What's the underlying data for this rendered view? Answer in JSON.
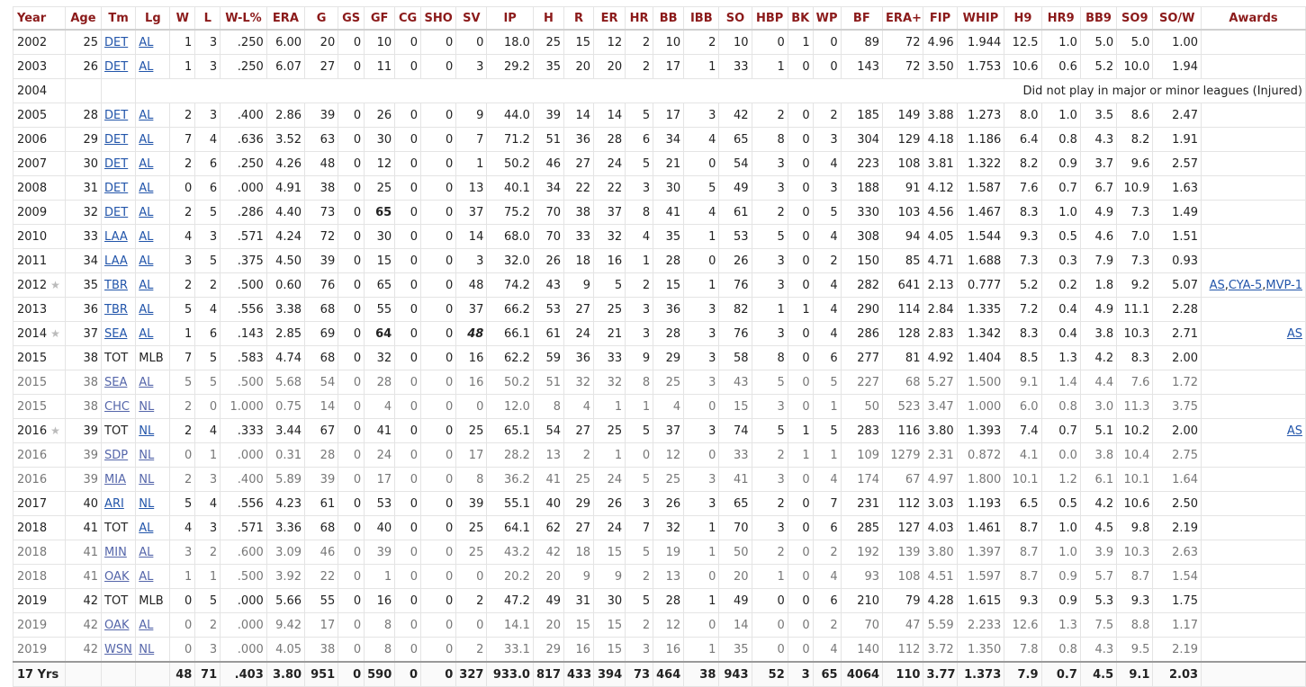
{
  "columns": [
    "Year",
    "Age",
    "Tm",
    "Lg",
    "W",
    "L",
    "W-L%",
    "ERA",
    "G",
    "GS",
    "GF",
    "CG",
    "SHO",
    "SV",
    "IP",
    "H",
    "R",
    "ER",
    "HR",
    "BB",
    "IBB",
    "SO",
    "HBP",
    "BK",
    "WP",
    "BF",
    "ERA+",
    "FIP",
    "WHIP",
    "H9",
    "HR9",
    "BB9",
    "SO9",
    "SO/W",
    "Awards"
  ],
  "rows": [
    {
      "year": "2002",
      "age": "25",
      "tm": "DET",
      "lg": "AL",
      "w": "1",
      "l": "3",
      "wlp": ".250",
      "era": "6.00",
      "g": "20",
      "gs": "0",
      "gf": "10",
      "cg": "0",
      "sho": "0",
      "sv": "0",
      "ip": "18.0",
      "h": "25",
      "r": "15",
      "er": "12",
      "hr": "2",
      "bb": "10",
      "ibb": "2",
      "so": "10",
      "hbp": "0",
      "bk": "1",
      "wp": "0",
      "bf": "89",
      "eraplus": "72",
      "fip": "4.96",
      "whip": "1.944",
      "h9": "12.5",
      "hr9": "1.0",
      "bb9": "5.0",
      "so9": "5.0",
      "sow": "1.00",
      "awards": []
    },
    {
      "year": "2003",
      "age": "26",
      "tm": "DET",
      "lg": "AL",
      "w": "1",
      "l": "3",
      "wlp": ".250",
      "era": "6.07",
      "g": "27",
      "gs": "0",
      "gf": "11",
      "cg": "0",
      "sho": "0",
      "sv": "3",
      "ip": "29.2",
      "h": "35",
      "r": "20",
      "er": "20",
      "hr": "2",
      "bb": "17",
      "ibb": "1",
      "so": "33",
      "hbp": "1",
      "bk": "0",
      "wp": "0",
      "bf": "143",
      "eraplus": "72",
      "fip": "3.50",
      "whip": "1.753",
      "h9": "10.6",
      "hr9": "0.6",
      "bb9": "5.2",
      "so9": "10.0",
      "sow": "1.94",
      "awards": []
    },
    {
      "year": "2004",
      "note": "Did not play in major or minor leagues (Injured)"
    },
    {
      "year": "2005",
      "age": "28",
      "tm": "DET",
      "lg": "AL",
      "w": "2",
      "l": "3",
      "wlp": ".400",
      "era": "2.86",
      "g": "39",
      "gs": "0",
      "gf": "26",
      "cg": "0",
      "sho": "0",
      "sv": "9",
      "ip": "44.0",
      "h": "39",
      "r": "14",
      "er": "14",
      "hr": "5",
      "bb": "17",
      "ibb": "3",
      "so": "42",
      "hbp": "2",
      "bk": "0",
      "wp": "2",
      "bf": "185",
      "eraplus": "149",
      "fip": "3.88",
      "whip": "1.273",
      "h9": "8.0",
      "hr9": "1.0",
      "bb9": "3.5",
      "so9": "8.6",
      "sow": "2.47",
      "awards": []
    },
    {
      "year": "2006",
      "age": "29",
      "tm": "DET",
      "lg": "AL",
      "w": "7",
      "l": "4",
      "wlp": ".636",
      "era": "3.52",
      "g": "63",
      "gs": "0",
      "gf": "30",
      "cg": "0",
      "sho": "0",
      "sv": "7",
      "ip": "71.2",
      "h": "51",
      "r": "36",
      "er": "28",
      "hr": "6",
      "bb": "34",
      "ibb": "4",
      "so": "65",
      "hbp": "8",
      "bk": "0",
      "wp": "3",
      "bf": "304",
      "eraplus": "129",
      "fip": "4.18",
      "whip": "1.186",
      "h9": "6.4",
      "hr9": "0.8",
      "bb9": "4.3",
      "so9": "8.2",
      "sow": "1.91",
      "awards": []
    },
    {
      "year": "2007",
      "age": "30",
      "tm": "DET",
      "lg": "AL",
      "w": "2",
      "l": "6",
      "wlp": ".250",
      "era": "4.26",
      "g": "48",
      "gs": "0",
      "gf": "12",
      "cg": "0",
      "sho": "0",
      "sv": "1",
      "ip": "50.2",
      "h": "46",
      "r": "27",
      "er": "24",
      "hr": "5",
      "bb": "21",
      "ibb": "0",
      "so": "54",
      "hbp": "3",
      "bk": "0",
      "wp": "4",
      "bf": "223",
      "eraplus": "108",
      "fip": "3.81",
      "whip": "1.322",
      "h9": "8.2",
      "hr9": "0.9",
      "bb9": "3.7",
      "so9": "9.6",
      "sow": "2.57",
      "awards": []
    },
    {
      "year": "2008",
      "age": "31",
      "tm": "DET",
      "lg": "AL",
      "w": "0",
      "l": "6",
      "wlp": ".000",
      "era": "4.91",
      "g": "38",
      "gs": "0",
      "gf": "25",
      "cg": "0",
      "sho": "0",
      "sv": "13",
      "ip": "40.1",
      "h": "34",
      "r": "22",
      "er": "22",
      "hr": "3",
      "bb": "30",
      "ibb": "5",
      "so": "49",
      "hbp": "3",
      "bk": "0",
      "wp": "3",
      "bf": "188",
      "eraplus": "91",
      "fip": "4.12",
      "whip": "1.587",
      "h9": "7.6",
      "hr9": "0.7",
      "bb9": "6.7",
      "so9": "10.9",
      "sow": "1.63",
      "awards": []
    },
    {
      "year": "2009",
      "age": "32",
      "tm": "DET",
      "lg": "AL",
      "w": "2",
      "l": "5",
      "wlp": ".286",
      "era": "4.40",
      "g": "73",
      "gs": "0",
      "gf": "65",
      "gfStyle": "bold",
      "cg": "0",
      "sho": "0",
      "sv": "37",
      "ip": "75.2",
      "h": "70",
      "r": "38",
      "er": "37",
      "hr": "8",
      "bb": "41",
      "ibb": "4",
      "so": "61",
      "hbp": "2",
      "bk": "0",
      "wp": "5",
      "bf": "330",
      "eraplus": "103",
      "fip": "4.56",
      "whip": "1.467",
      "h9": "8.3",
      "hr9": "1.0",
      "bb9": "4.9",
      "so9": "7.3",
      "sow": "1.49",
      "awards": []
    },
    {
      "year": "2010",
      "age": "33",
      "tm": "LAA",
      "lg": "AL",
      "w": "4",
      "l": "3",
      "wlp": ".571",
      "era": "4.24",
      "g": "72",
      "gs": "0",
      "gf": "30",
      "cg": "0",
      "sho": "0",
      "sv": "14",
      "ip": "68.0",
      "h": "70",
      "r": "33",
      "er": "32",
      "hr": "4",
      "bb": "35",
      "ibb": "1",
      "so": "53",
      "hbp": "5",
      "bk": "0",
      "wp": "4",
      "bf": "308",
      "eraplus": "94",
      "fip": "4.05",
      "whip": "1.544",
      "h9": "9.3",
      "hr9": "0.5",
      "bb9": "4.6",
      "so9": "7.0",
      "sow": "1.51",
      "awards": []
    },
    {
      "year": "2011",
      "age": "34",
      "tm": "LAA",
      "lg": "AL",
      "w": "3",
      "l": "5",
      "wlp": ".375",
      "era": "4.50",
      "g": "39",
      "gs": "0",
      "gf": "15",
      "cg": "0",
      "sho": "0",
      "sv": "3",
      "ip": "32.0",
      "h": "26",
      "r": "18",
      "er": "16",
      "hr": "1",
      "bb": "28",
      "ibb": "0",
      "so": "26",
      "hbp": "3",
      "bk": "0",
      "wp": "2",
      "bf": "150",
      "eraplus": "85",
      "fip": "4.71",
      "whip": "1.688",
      "h9": "7.3",
      "hr9": "0.3",
      "bb9": "7.9",
      "so9": "7.3",
      "sow": "0.93",
      "awards": []
    },
    {
      "year": "2012",
      "star": "★",
      "age": "35",
      "tm": "TBR",
      "lg": "AL",
      "w": "2",
      "l": "2",
      "wlp": ".500",
      "era": "0.60",
      "g": "76",
      "gs": "0",
      "gf": "65",
      "cg": "0",
      "sho": "0",
      "sv": "48",
      "ip": "74.2",
      "h": "43",
      "r": "9",
      "er": "5",
      "hr": "2",
      "bb": "15",
      "ibb": "1",
      "so": "76",
      "hbp": "3",
      "bk": "0",
      "wp": "4",
      "bf": "282",
      "eraplus": "641",
      "fip": "2.13",
      "whip": "0.777",
      "h9": "5.2",
      "hr9": "0.2",
      "bb9": "1.8",
      "so9": "9.2",
      "sow": "5.07",
      "awards": [
        "AS",
        "CYA-5",
        "MVP-1"
      ]
    },
    {
      "year": "2013",
      "age": "36",
      "tm": "TBR",
      "lg": "AL",
      "w": "5",
      "l": "4",
      "wlp": ".556",
      "era": "3.38",
      "g": "68",
      "gs": "0",
      "gf": "55",
      "cg": "0",
      "sho": "0",
      "sv": "37",
      "ip": "66.2",
      "h": "53",
      "r": "27",
      "er": "25",
      "hr": "3",
      "bb": "36",
      "ibb": "3",
      "so": "82",
      "hbp": "1",
      "bk": "1",
      "wp": "4",
      "bf": "290",
      "eraplus": "114",
      "fip": "2.84",
      "whip": "1.335",
      "h9": "7.2",
      "hr9": "0.4",
      "bb9": "4.9",
      "so9": "11.1",
      "sow": "2.28",
      "awards": []
    },
    {
      "year": "2014",
      "star": "★",
      "age": "37",
      "tm": "SEA",
      "lg": "AL",
      "w": "1",
      "l": "6",
      "wlp": ".143",
      "era": "2.85",
      "g": "69",
      "gs": "0",
      "gf": "64",
      "gfStyle": "bold",
      "cg": "0",
      "sho": "0",
      "sv": "48",
      "svStyle": "bi",
      "ip": "66.1",
      "h": "61",
      "r": "24",
      "er": "21",
      "hr": "3",
      "bb": "28",
      "ibb": "3",
      "so": "76",
      "hbp": "3",
      "bk": "0",
      "wp": "4",
      "bf": "286",
      "eraplus": "128",
      "fip": "2.83",
      "whip": "1.342",
      "h9": "8.3",
      "hr9": "0.4",
      "bb9": "3.8",
      "so9": "10.3",
      "sow": "2.71",
      "awards": [
        "AS"
      ]
    },
    {
      "year": "2015",
      "age": "38",
      "tm": "TOT",
      "lg": "MLB",
      "w": "7",
      "l": "5",
      "wlp": ".583",
      "era": "4.74",
      "g": "68",
      "gs": "0",
      "gf": "32",
      "cg": "0",
      "sho": "0",
      "sv": "16",
      "ip": "62.2",
      "h": "59",
      "r": "36",
      "er": "33",
      "hr": "9",
      "bb": "29",
      "ibb": "3",
      "so": "58",
      "hbp": "8",
      "bk": "0",
      "wp": "6",
      "bf": "277",
      "eraplus": "81",
      "fip": "4.92",
      "whip": "1.404",
      "h9": "8.5",
      "hr9": "1.3",
      "bb9": "4.2",
      "so9": "8.3",
      "sow": "2.00",
      "awards": [],
      "tmLink": false,
      "lgLink": false
    },
    {
      "year": "2015",
      "partial": true,
      "age": "38",
      "tm": "SEA",
      "lg": "AL",
      "w": "5",
      "l": "5",
      "wlp": ".500",
      "era": "5.68",
      "g": "54",
      "gs": "0",
      "gf": "28",
      "cg": "0",
      "sho": "0",
      "sv": "16",
      "ip": "50.2",
      "h": "51",
      "r": "32",
      "er": "32",
      "hr": "8",
      "bb": "25",
      "ibb": "3",
      "so": "43",
      "hbp": "5",
      "bk": "0",
      "wp": "5",
      "bf": "227",
      "eraplus": "68",
      "fip": "5.27",
      "whip": "1.500",
      "h9": "9.1",
      "hr9": "1.4",
      "bb9": "4.4",
      "so9": "7.6",
      "sow": "1.72",
      "awards": []
    },
    {
      "year": "2015",
      "partial": true,
      "age": "38",
      "tm": "CHC",
      "lg": "NL",
      "w": "2",
      "l": "0",
      "wlp": "1.000",
      "era": "0.75",
      "g": "14",
      "gs": "0",
      "gf": "4",
      "cg": "0",
      "sho": "0",
      "sv": "0",
      "ip": "12.0",
      "h": "8",
      "r": "4",
      "er": "1",
      "hr": "1",
      "bb": "4",
      "ibb": "0",
      "so": "15",
      "hbp": "3",
      "bk": "0",
      "wp": "1",
      "bf": "50",
      "eraplus": "523",
      "fip": "3.47",
      "whip": "1.000",
      "h9": "6.0",
      "hr9": "0.8",
      "bb9": "3.0",
      "so9": "11.3",
      "sow": "3.75",
      "awards": []
    },
    {
      "year": "2016",
      "star": "★",
      "age": "39",
      "tm": "TOT",
      "lg": "NL",
      "w": "2",
      "l": "4",
      "wlp": ".333",
      "era": "3.44",
      "g": "67",
      "gs": "0",
      "gf": "41",
      "cg": "0",
      "sho": "0",
      "sv": "25",
      "ip": "65.1",
      "h": "54",
      "r": "27",
      "er": "25",
      "hr": "5",
      "bb": "37",
      "ibb": "3",
      "so": "74",
      "hbp": "5",
      "bk": "1",
      "wp": "5",
      "bf": "283",
      "eraplus": "116",
      "fip": "3.80",
      "whip": "1.393",
      "h9": "7.4",
      "hr9": "0.7",
      "bb9": "5.1",
      "so9": "10.2",
      "sow": "2.00",
      "awards": [
        "AS"
      ],
      "tmLink": false
    },
    {
      "year": "2016",
      "partial": true,
      "age": "39",
      "tm": "SDP",
      "lg": "NL",
      "w": "0",
      "l": "1",
      "wlp": ".000",
      "era": "0.31",
      "g": "28",
      "gs": "0",
      "gf": "24",
      "cg": "0",
      "sho": "0",
      "sv": "17",
      "ip": "28.2",
      "h": "13",
      "r": "2",
      "er": "1",
      "hr": "0",
      "bb": "12",
      "ibb": "0",
      "so": "33",
      "hbp": "2",
      "bk": "1",
      "wp": "1",
      "bf": "109",
      "eraplus": "1279",
      "fip": "2.31",
      "whip": "0.872",
      "h9": "4.1",
      "hr9": "0.0",
      "bb9": "3.8",
      "so9": "10.4",
      "sow": "2.75",
      "awards": []
    },
    {
      "year": "2016",
      "partial": true,
      "age": "39",
      "tm": "MIA",
      "lg": "NL",
      "w": "2",
      "l": "3",
      "wlp": ".400",
      "era": "5.89",
      "g": "39",
      "gs": "0",
      "gf": "17",
      "cg": "0",
      "sho": "0",
      "sv": "8",
      "ip": "36.2",
      "h": "41",
      "r": "25",
      "er": "24",
      "hr": "5",
      "bb": "25",
      "ibb": "3",
      "so": "41",
      "hbp": "3",
      "bk": "0",
      "wp": "4",
      "bf": "174",
      "eraplus": "67",
      "fip": "4.97",
      "whip": "1.800",
      "h9": "10.1",
      "hr9": "1.2",
      "bb9": "6.1",
      "so9": "10.1",
      "sow": "1.64",
      "awards": []
    },
    {
      "year": "2017",
      "age": "40",
      "tm": "ARI",
      "lg": "NL",
      "w": "5",
      "l": "4",
      "wlp": ".556",
      "era": "4.23",
      "g": "61",
      "gs": "0",
      "gf": "53",
      "cg": "0",
      "sho": "0",
      "sv": "39",
      "ip": "55.1",
      "h": "40",
      "r": "29",
      "er": "26",
      "hr": "3",
      "bb": "26",
      "ibb": "3",
      "so": "65",
      "hbp": "2",
      "bk": "0",
      "wp": "7",
      "bf": "231",
      "eraplus": "112",
      "fip": "3.03",
      "whip": "1.193",
      "h9": "6.5",
      "hr9": "0.5",
      "bb9": "4.2",
      "so9": "10.6",
      "sow": "2.50",
      "awards": []
    },
    {
      "year": "2018",
      "age": "41",
      "tm": "TOT",
      "lg": "AL",
      "w": "4",
      "l": "3",
      "wlp": ".571",
      "era": "3.36",
      "g": "68",
      "gs": "0",
      "gf": "40",
      "cg": "0",
      "sho": "0",
      "sv": "25",
      "ip": "64.1",
      "h": "62",
      "r": "27",
      "er": "24",
      "hr": "7",
      "bb": "32",
      "ibb": "1",
      "so": "70",
      "hbp": "3",
      "bk": "0",
      "wp": "6",
      "bf": "285",
      "eraplus": "127",
      "fip": "4.03",
      "whip": "1.461",
      "h9": "8.7",
      "hr9": "1.0",
      "bb9": "4.5",
      "so9": "9.8",
      "sow": "2.19",
      "awards": [],
      "tmLink": false
    },
    {
      "year": "2018",
      "partial": true,
      "age": "41",
      "tm": "MIN",
      "lg": "AL",
      "w": "3",
      "l": "2",
      "wlp": ".600",
      "era": "3.09",
      "g": "46",
      "gs": "0",
      "gf": "39",
      "cg": "0",
      "sho": "0",
      "sv": "25",
      "ip": "43.2",
      "h": "42",
      "r": "18",
      "er": "15",
      "hr": "5",
      "bb": "19",
      "ibb": "1",
      "so": "50",
      "hbp": "2",
      "bk": "0",
      "wp": "2",
      "bf": "192",
      "eraplus": "139",
      "fip": "3.80",
      "whip": "1.397",
      "h9": "8.7",
      "hr9": "1.0",
      "bb9": "3.9",
      "so9": "10.3",
      "sow": "2.63",
      "awards": []
    },
    {
      "year": "2018",
      "partial": true,
      "age": "41",
      "tm": "OAK",
      "lg": "AL",
      "w": "1",
      "l": "1",
      "wlp": ".500",
      "era": "3.92",
      "g": "22",
      "gs": "0",
      "gf": "1",
      "cg": "0",
      "sho": "0",
      "sv": "0",
      "ip": "20.2",
      "h": "20",
      "r": "9",
      "er": "9",
      "hr": "2",
      "bb": "13",
      "ibb": "0",
      "so": "20",
      "hbp": "1",
      "bk": "0",
      "wp": "4",
      "bf": "93",
      "eraplus": "108",
      "fip": "4.51",
      "whip": "1.597",
      "h9": "8.7",
      "hr9": "0.9",
      "bb9": "5.7",
      "so9": "8.7",
      "sow": "1.54",
      "awards": []
    },
    {
      "year": "2019",
      "age": "42",
      "tm": "TOT",
      "lg": "MLB",
      "w": "0",
      "l": "5",
      "wlp": ".000",
      "era": "5.66",
      "g": "55",
      "gs": "0",
      "gf": "16",
      "cg": "0",
      "sho": "0",
      "sv": "2",
      "ip": "47.2",
      "h": "49",
      "r": "31",
      "er": "30",
      "hr": "5",
      "bb": "28",
      "ibb": "1",
      "so": "49",
      "hbp": "0",
      "bk": "0",
      "wp": "6",
      "bf": "210",
      "eraplus": "79",
      "fip": "4.28",
      "whip": "1.615",
      "h9": "9.3",
      "hr9": "0.9",
      "bb9": "5.3",
      "so9": "9.3",
      "sow": "1.75",
      "awards": [],
      "tmLink": false,
      "lgLink": false
    },
    {
      "year": "2019",
      "partial": true,
      "age": "42",
      "tm": "OAK",
      "lg": "AL",
      "w": "0",
      "l": "2",
      "wlp": ".000",
      "era": "9.42",
      "g": "17",
      "gs": "0",
      "gf": "8",
      "cg": "0",
      "sho": "0",
      "sv": "0",
      "ip": "14.1",
      "h": "20",
      "r": "15",
      "er": "15",
      "hr": "2",
      "bb": "12",
      "ibb": "0",
      "so": "14",
      "hbp": "0",
      "bk": "0",
      "wp": "2",
      "bf": "70",
      "eraplus": "47",
      "fip": "5.59",
      "whip": "2.233",
      "h9": "12.6",
      "hr9": "1.3",
      "bb9": "7.5",
      "so9": "8.8",
      "sow": "1.17",
      "awards": []
    },
    {
      "year": "2019",
      "partial": true,
      "age": "42",
      "tm": "WSN",
      "lg": "NL",
      "w": "0",
      "l": "3",
      "wlp": ".000",
      "era": "4.05",
      "g": "38",
      "gs": "0",
      "gf": "8",
      "cg": "0",
      "sho": "0",
      "sv": "2",
      "ip": "33.1",
      "h": "29",
      "r": "16",
      "er": "15",
      "hr": "3",
      "bb": "16",
      "ibb": "1",
      "so": "35",
      "hbp": "0",
      "bk": "0",
      "wp": "4",
      "bf": "140",
      "eraplus": "112",
      "fip": "3.72",
      "whip": "1.350",
      "h9": "7.8",
      "hr9": "0.8",
      "bb9": "4.3",
      "so9": "9.5",
      "sow": "2.19",
      "awards": []
    }
  ],
  "totals": {
    "label": "17 Yrs",
    "w": "48",
    "l": "71",
    "wlp": ".403",
    "era": "3.80",
    "g": "951",
    "gs": "0",
    "gf": "590",
    "cg": "0",
    "sho": "0",
    "sv": "327",
    "ip": "933.0",
    "h": "817",
    "r": "433",
    "er": "394",
    "hr": "73",
    "bb": "464",
    "ibb": "38",
    "so": "943",
    "hbp": "52",
    "bk": "3",
    "wp": "65",
    "bf": "4064",
    "eraplus": "110",
    "fip": "3.77",
    "whip": "1.373",
    "h9": "7.9",
    "hr9": "0.7",
    "bb9": "4.5",
    "so9": "9.1",
    "sow": "2.03"
  },
  "colors": {
    "header_text": "#8b1a1a",
    "link": "#2255aa",
    "partial_text": "#777777",
    "star": "#bbbbbb"
  }
}
